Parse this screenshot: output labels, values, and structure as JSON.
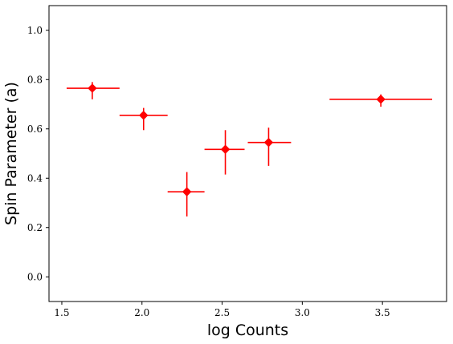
{
  "chart_data": {
    "type": "scatter",
    "title": "",
    "xlabel": "log Counts",
    "ylabel": "Spin Parameter (a)",
    "xlim": [
      1.42,
      3.9
    ],
    "ylim": [
      -0.1,
      1.1
    ],
    "xticks": [
      1.5,
      2.0,
      2.5,
      3.0,
      3.5
    ],
    "xtick_labels": [
      "1.5",
      "2.0",
      "2.5",
      "3.0",
      "3.5"
    ],
    "yticks": [
      0.0,
      0.2,
      0.4,
      0.6,
      0.8,
      1.0
    ],
    "ytick_labels": [
      "0.0",
      "0.2",
      "0.4",
      "0.6",
      "0.8",
      "1.0"
    ],
    "grid": false,
    "marker": "diamond",
    "color": "#ff0000",
    "points": [
      {
        "x": 1.69,
        "y": 0.765,
        "x_low": 1.53,
        "x_high": 1.86,
        "y_low": 0.72,
        "y_high": 0.79
      },
      {
        "x": 2.01,
        "y": 0.655,
        "x_low": 1.86,
        "x_high": 2.16,
        "y_low": 0.595,
        "y_high": 0.685
      },
      {
        "x": 2.28,
        "y": 0.345,
        "x_low": 2.16,
        "x_high": 2.39,
        "y_low": 0.245,
        "y_high": 0.425
      },
      {
        "x": 2.52,
        "y": 0.517,
        "x_low": 2.39,
        "x_high": 2.64,
        "y_low": 0.415,
        "y_high": 0.595
      },
      {
        "x": 2.79,
        "y": 0.545,
        "x_low": 2.66,
        "x_high": 2.93,
        "y_low": 0.45,
        "y_high": 0.605
      },
      {
        "x": 3.49,
        "y": 0.72,
        "x_low": 3.17,
        "x_high": 3.81,
        "y_low": 0.69,
        "y_high": 0.74
      }
    ]
  }
}
